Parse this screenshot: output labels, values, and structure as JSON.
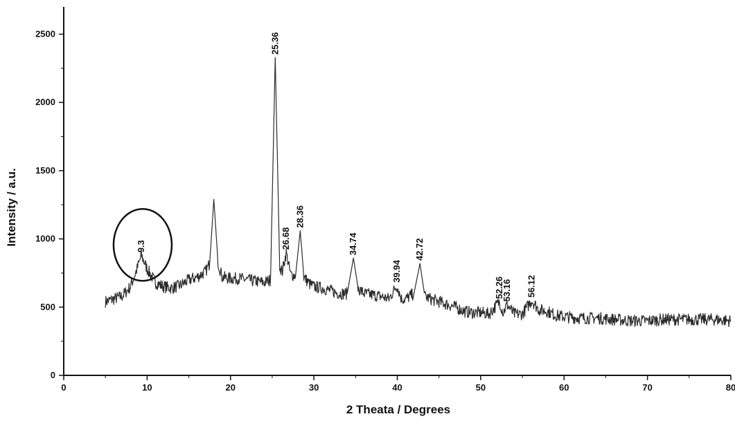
{
  "chart_data": {
    "type": "line",
    "title": "",
    "xlabel": "2 Theata / Degrees",
    "ylabel": "Intensity / a.u.",
    "xlim": [
      0,
      80
    ],
    "ylim": [
      0,
      2700
    ],
    "x_ticks": [
      0,
      10,
      20,
      30,
      40,
      50,
      60,
      70,
      80
    ],
    "y_ticks": [
      0,
      500,
      1000,
      1500,
      2000,
      2500
    ],
    "grid": false,
    "legend": "none",
    "series": [
      {
        "color": "#2a2a2a",
        "points": [
          [
            5,
            540
          ],
          [
            6,
            560
          ],
          [
            7,
            580
          ],
          [
            8,
            650
          ],
          [
            8.8,
            780
          ],
          [
            9.3,
            880
          ],
          [
            10,
            780
          ],
          [
            11,
            680
          ],
          [
            12,
            650
          ],
          [
            13,
            640
          ],
          [
            14,
            660
          ],
          [
            15,
            700
          ],
          [
            16,
            720
          ],
          [
            17,
            760
          ],
          [
            17.5,
            820
          ],
          [
            18,
            1290
          ],
          [
            18.5,
            830
          ],
          [
            19,
            720
          ],
          [
            20,
            710
          ],
          [
            21,
            710
          ],
          [
            22,
            700
          ],
          [
            23,
            690
          ],
          [
            24,
            680
          ],
          [
            24.8,
            700
          ],
          [
            25.36,
            2330
          ],
          [
            25.9,
            800
          ],
          [
            26.2,
            760
          ],
          [
            26.68,
            900
          ],
          [
            27.2,
            740
          ],
          [
            27.8,
            730
          ],
          [
            28.36,
            1060
          ],
          [
            28.8,
            720
          ],
          [
            29.5,
            670
          ],
          [
            30,
            650
          ],
          [
            31,
            640
          ],
          [
            32,
            620
          ],
          [
            33,
            600
          ],
          [
            34,
            600
          ],
          [
            34.74,
            860
          ],
          [
            35.3,
            640
          ],
          [
            36,
            600
          ],
          [
            37,
            590
          ],
          [
            38,
            580
          ],
          [
            39,
            560
          ],
          [
            39.94,
            660
          ],
          [
            40.5,
            560
          ],
          [
            41,
            560
          ],
          [
            42,
            600
          ],
          [
            42.72,
            820
          ],
          [
            43.3,
            580
          ],
          [
            44,
            560
          ],
          [
            45,
            540
          ],
          [
            46,
            520
          ],
          [
            47,
            500
          ],
          [
            48,
            470
          ],
          [
            49,
            460
          ],
          [
            50,
            460
          ],
          [
            51,
            450
          ],
          [
            52.26,
            540
          ],
          [
            52.7,
            460
          ],
          [
            53.16,
            520
          ],
          [
            54,
            450
          ],
          [
            55,
            450
          ],
          [
            56.12,
            550
          ],
          [
            57,
            480
          ],
          [
            58,
            470
          ],
          [
            59,
            440
          ],
          [
            60,
            430
          ],
          [
            62,
            420
          ],
          [
            64,
            420
          ],
          [
            66,
            410
          ],
          [
            68,
            400
          ],
          [
            70,
            400
          ],
          [
            72,
            410
          ],
          [
            74,
            410
          ],
          [
            76,
            410
          ],
          [
            78,
            410
          ],
          [
            80,
            400
          ]
        ]
      }
    ],
    "annotations": [
      {
        "text": "9.3",
        "x": 9.3,
        "y": 880
      },
      {
        "text": "25.36",
        "x": 25.36,
        "y": 2330
      },
      {
        "text": "26.68",
        "x": 26.68,
        "y": 900
      },
      {
        "text": "28.36",
        "x": 28.36,
        "y": 1060
      },
      {
        "text": "34.74",
        "x": 34.74,
        "y": 860
      },
      {
        "text": "39.94",
        "x": 39.94,
        "y": 660
      },
      {
        "text": "42.72",
        "x": 42.72,
        "y": 820
      },
      {
        "text": "52.26",
        "x": 52.26,
        "y": 540
      },
      {
        "text": "53.16",
        "x": 53.16,
        "y": 520
      },
      {
        "text": "56.12",
        "x": 56.12,
        "y": 550
      }
    ],
    "highlight": {
      "shape": "ellipse",
      "around": "9.3"
    }
  }
}
